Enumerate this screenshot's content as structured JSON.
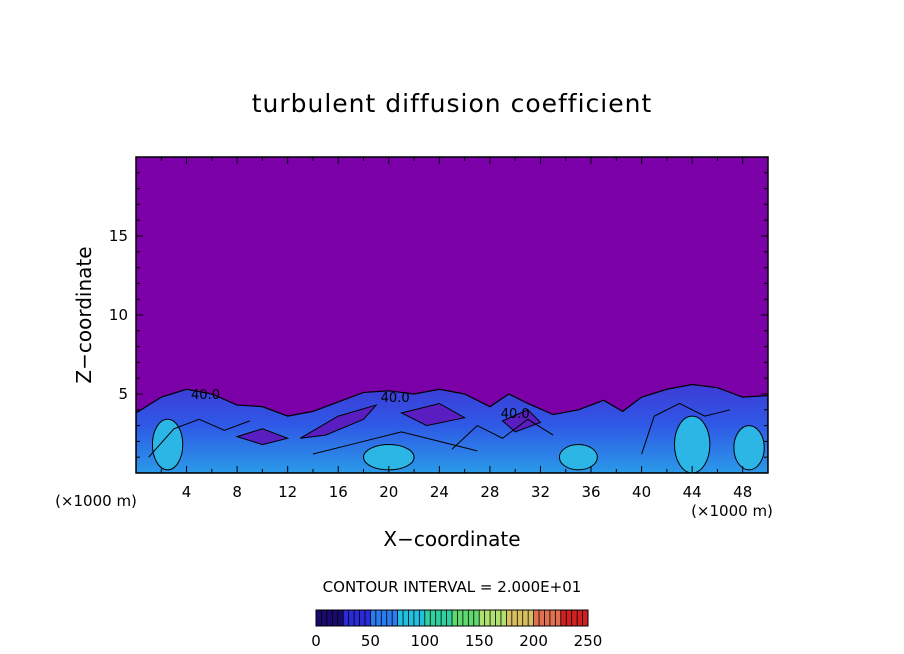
{
  "chart_data": {
    "type": "heatmap",
    "title": "turbulent diffusion coefficient",
    "xlabel": "X−coordinate",
    "ylabel": "Z−coordinate",
    "x_unit": "(×1000 m)",
    "y_unit": "(×1000 m)",
    "xlim": [
      0,
      50
    ],
    "ylim": [
      0,
      20
    ],
    "x_ticks": [
      "4",
      "8",
      "12",
      "16",
      "20",
      "24",
      "28",
      "32",
      "36",
      "40",
      "44",
      "48"
    ],
    "y_ticks": [
      "5",
      "10",
      "15"
    ],
    "contour_interval_text": "CONTOUR INTERVAL = 2.000E+01",
    "contour_interval": 20,
    "contour_labels": [
      {
        "text": "40.0",
        "x": 5.5,
        "z": 5.0
      },
      {
        "text": "40.0",
        "x": 20.5,
        "z": 4.8
      },
      {
        "text": "40.0",
        "x": 30.0,
        "z": 3.8
      }
    ],
    "colorbar": {
      "min": 0,
      "max": 250,
      "tick_labels": [
        "0",
        "50",
        "100",
        "150",
        "200",
        "250"
      ],
      "colors": [
        "#1a0a6e",
        "#2a2ad8",
        "#2a7cf0",
        "#22c0e0",
        "#30d0a0",
        "#60d870",
        "#b0e070",
        "#d8c060",
        "#e07050",
        "#d02020"
      ]
    },
    "background_color": "#7b00a8",
    "turbulent_layer_top_km": 5
  }
}
